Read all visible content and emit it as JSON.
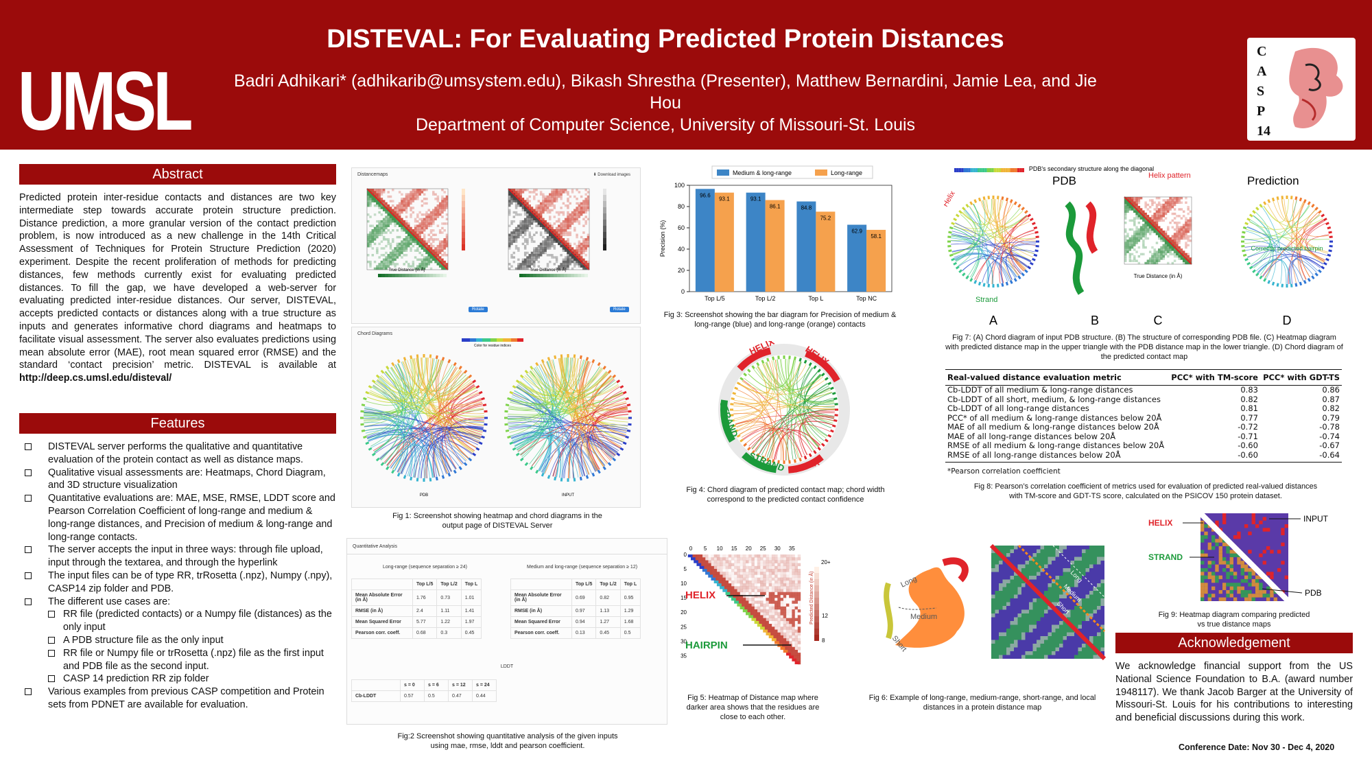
{
  "header": {
    "logo": "UMSL",
    "title": "DISTEVAL: For Evaluating Predicted Protein Distances",
    "authors": "Badri Adhikari* (adhikarib@umsystem.edu), Bikash Shrestha (Presenter), Matthew Bernardini, Jamie Lea, and Jie Hou",
    "department": "Department of Computer Science, University of Missouri-St. Louis",
    "casp_letters": [
      "C",
      "A",
      "S",
      "P",
      "14"
    ]
  },
  "abstract": {
    "heading": "Abstract",
    "text": "Predicted protein inter-residue contacts and distances are two key intermediate step towards accurate protein structure prediction. Distance prediction, a more granular version of the contact prediction problem, is now introduced as a new challenge in the 14th Critical Assessment of Techniques for Protein Structure Prediction (2020) experiment. Despite the recent proliferation of methods for predicting distances, few methods currently exist for evaluating predicted distances. To fill the gap, we have developed a web-server for evaluating predicted inter-residue distances. Our server, DISTEVAL, accepts predicted contacts or distances along with a true structure as inputs and generates informative chord diagrams and heatmaps to facilitate visual assessment. The server also evaluates predictions using mean absolute error (MAE), root mean squared error (RMSE) and the standard ‘contact precision’ metric. DISTEVAL is available at",
    "url": "http://deep.cs.umsl.edu/disteval/"
  },
  "features": {
    "heading": "Features",
    "items": [
      {
        "text": "DISTEVAL server performs the qualitative and quantitative evaluation of the protein contact as well as distance maps.",
        "level": 0
      },
      {
        "text": "Qualitative visual assessments are: Heatmaps, Chord Diagram, and 3D structure visualization",
        "level": 0
      },
      {
        "text": "Quantitative evaluations are: MAE, MSE, RMSE, LDDT score and Pearson Correlation Coefficient of long-range and medium & long-range distances, and Precision of medium & long-range and long-range contacts.",
        "level": 0
      },
      {
        "text": "The server accepts the input in three ways: through file upload, input through the textarea, and through the hyperlink",
        "level": 0
      },
      {
        "text": "The input files can be of type RR, trRosetta (.npz), Numpy (.npy), CASP14 zip folder and PDB.",
        "level": 0
      },
      {
        "text": "The different use cases are:",
        "level": 0
      },
      {
        "text": "RR file (predicted contacts) or a Numpy file (distances) as the only input",
        "level": 1
      },
      {
        "text": "A PDB structure file as the only input",
        "level": 1
      },
      {
        "text": "RR file or Numpy file or trRosetta (.npz) file as the first input and PDB file as the second input.",
        "level": 1
      },
      {
        "text": "CASP 14 prediction RR zip folder",
        "level": 1
      },
      {
        "text": "Various examples from previous CASP competition and Protein sets from PDNET are available for evaluation.",
        "level": 0
      }
    ]
  },
  "fig1": {
    "panel_title": "Distancemaps",
    "download": "Download images",
    "rotate": "Rotate",
    "chord_title": "Chord Diagrams",
    "pdb_label": "PDB",
    "input_label": "INPUT",
    "colorbar_label": "Color for residue indices",
    "axis_label": "True Distance (in Å)",
    "caption": "Fig 1: Screenshot showing heatmap and chord diagrams in the output page of DISTEVAL Server"
  },
  "fig2": {
    "panel_title": "Quantitative Analysis",
    "left_title": "Long-range (sequence separation ≥ 24)",
    "right_title": "Medium and long-range (sequence separation ≥ 12)",
    "cols": [
      "Top L/5",
      "Top L/2",
      "Top L"
    ],
    "rows": [
      "Mean Absolute Error (in Å)",
      "RMSE (in Å)",
      "Mean Squared Error",
      "Pearson corr. coeff."
    ],
    "left_values": [
      [
        "1.76",
        "0.73",
        "1.01"
      ],
      [
        "2.4",
        "1.11",
        "1.41"
      ],
      [
        "5.77",
        "1.22",
        "1.97"
      ],
      [
        "0.68",
        "0.3",
        "0.45"
      ]
    ],
    "right_values": [
      [
        "0.69",
        "0.82",
        "0.95"
      ],
      [
        "0.97",
        "1.13",
        "1.29"
      ],
      [
        "0.94",
        "1.27",
        "1.68"
      ],
      [
        "0.13",
        "0.45",
        "0.5"
      ]
    ],
    "lddt_title": "LDDT",
    "lddt_cols": [
      "s = 0",
      "s = 6",
      "s = 12",
      "s = 24"
    ],
    "lddt_row": "Cb-LDDT",
    "lddt_values": [
      "0.57",
      "0.5",
      "0.47",
      "0.44"
    ],
    "caption": "Fig:2 Screenshot showing quantitative analysis of the given inputs using mae, rmse, lddt and pearson coefficient."
  },
  "fig3": {
    "caption": "Fig 3: Screenshot showing the bar diagram for Precision of medium & long-range (blue) and long-range (orange) contacts"
  },
  "chart_data": {
    "type": "bar",
    "categories": [
      "Top L/5",
      "Top L/2",
      "Top L",
      "Top NC"
    ],
    "series": [
      {
        "name": "Medium & long-range",
        "values": [
          96.6,
          93.1,
          84.8,
          62.9
        ],
        "color": "#3d85c6"
      },
      {
        "name": "Long-range",
        "values": [
          93.1,
          86.1,
          75.2,
          58.1
        ],
        "color": "#f5a14d"
      }
    ],
    "ylabel": "Precision (%)",
    "ylim": [
      0,
      100
    ],
    "yticks": [
      0,
      20,
      40,
      60,
      80,
      100
    ],
    "legend": "top-center",
    "grid": false
  },
  "fig4": {
    "labels": [
      "HELIX",
      "HELIX",
      "STRAND",
      "STRAND",
      "HELIX"
    ],
    "caption": "Fig 4: Chord diagram of predicted contact map; chord width correspond to the predicted contact confidence"
  },
  "fig5": {
    "helix": "HELIX",
    "hairpin": "HAIRPIN",
    "axis_ticks": [
      "0",
      "5",
      "10",
      "15",
      "20",
      "25",
      "30",
      "35"
    ],
    "colorbar_label": "Predicted Distance (in Å)",
    "colorbar_ticks": [
      "20+",
      "12",
      "8"
    ],
    "caption": "Fig 5: Heatmap of Distance map where darker area shows that the residues are close to each other."
  },
  "fig6": {
    "labels": [
      "Long",
      "Medium",
      "Short"
    ],
    "caption": "Fig 6: Example of long-range, medium-range, short-range, and local distances in a protein distance map"
  },
  "fig7": {
    "pdb_label": "PDB",
    "pdb_note": "PDB's secondary structure along the diagonal",
    "helix_pattern": "Helix pattern",
    "prediction": "Prediction",
    "helix": "Helix",
    "strand": "Strand",
    "correct": "Correctly predicted hairpin",
    "panel_letters": [
      "A",
      "B",
      "C",
      "D"
    ],
    "axis_label": "True Distance (in Å)",
    "caption": "Fig 7: (A) Chord diagram of input PDB structure. (B) The structure of corresponding PDB file. (C) Heatmap diagram with predicted distance map in the upper triangle with the PDB distance map in the lower triangle. (D) Chord diagram of the predicted contact map"
  },
  "fig8": {
    "headers": [
      "Real-valued distance evaluation metric",
      "PCC* with TM-score",
      "PCC* with GDT-TS"
    ],
    "rows": [
      [
        "Cb-LDDT of all medium & long-range distances",
        "0.83",
        "0.86"
      ],
      [
        "Cb-LDDT of all short, medium, & long-range distances",
        "0.82",
        "0.87"
      ],
      [
        "Cb-LDDT of all long-range distances",
        "0.81",
        "0.82"
      ],
      [
        "PCC* of all medium & long-range distances below 20Å",
        "0.77",
        "0.79"
      ],
      [
        "MAE of all medium & long-range distances below 20Å",
        "-0.72",
        "-0.78"
      ],
      [
        "MAE of all long-range distances below 20Å",
        "-0.71",
        "-0.74"
      ],
      [
        "RMSE of all medium & long-range distances below 20Å",
        "-0.60",
        "-0.67"
      ],
      [
        "RMSE of all long-range distances below 20Å",
        "-0.60",
        "-0.64"
      ]
    ],
    "footnote": "*Pearson correlation coefficient",
    "caption": "Fig 8: Pearson’s correlation coefficient of metrics used for evaluation of predicted real-valued distances with TM-score and GDT-TS score, calculated on the PSICOV 150 protein dataset."
  },
  "fig9": {
    "input": "INPUT",
    "pdb": "PDB",
    "helix": "HELIX",
    "strand": "STRAND",
    "caption": "Fig 9: Heatmap diagram comparing predicted vs true distance maps"
  },
  "acknowledgement": {
    "heading": "Acknowledgement",
    "text": "We acknowledge financial support from the US National Science Foundation to B.A. (award number 1948117). We thank Jacob Barger at the University of Missouri-St. Louis for his contributions to interesting and beneficial discussions during this work."
  },
  "conference": "Conference Date: Nov 30 - Dec 4, 2020",
  "colors": {
    "brand": "#9b0b0b",
    "green": "#1b9a3a",
    "red": "#e0232a"
  }
}
